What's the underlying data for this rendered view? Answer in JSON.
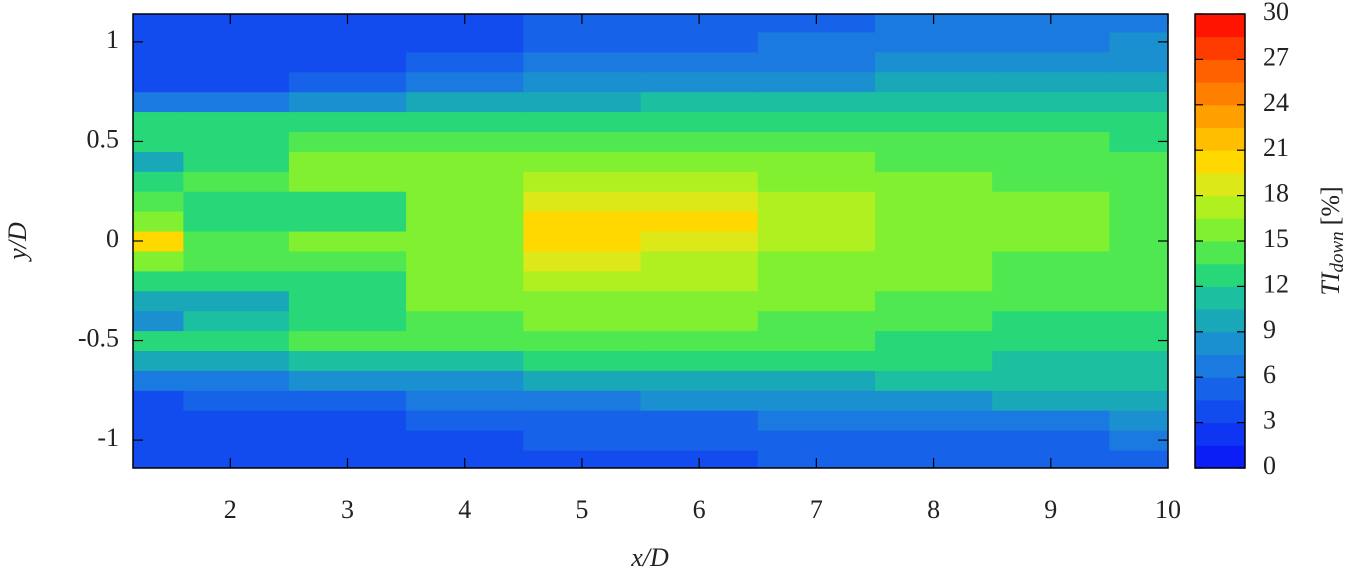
{
  "chart_data": {
    "type": "contour",
    "x_label": "x/D",
    "y_label": "y/D",
    "colorbar_label": {
      "main": "TI",
      "sub": "down",
      "unit": "[%]"
    },
    "xlim": [
      1.17,
      10
    ],
    "ylim": [
      -1.14,
      1.14
    ],
    "xticks": [
      2,
      3,
      4,
      5,
      6,
      7,
      8,
      9,
      10
    ],
    "yticks": [
      -1,
      -0.5,
      0,
      0.5,
      1
    ],
    "zlim": [
      0,
      30
    ],
    "zticks": [
      0,
      3,
      6,
      9,
      12,
      15,
      18,
      21,
      24,
      27,
      30
    ],
    "level_step": 1.5,
    "colors": [
      "#0a1ef5",
      "#0e35f2",
      "#124cee",
      "#1663ea",
      "#1a7ae0",
      "#1a90d0",
      "#18a8b8",
      "#1cc0a0",
      "#28d878",
      "#50e850",
      "#80f030",
      "#b0f020",
      "#dce818",
      "#ffd800",
      "#ffbe00",
      "#ffa000",
      "#ff8000",
      "#ff6000",
      "#ff3c00",
      "#ff1400"
    ],
    "x": [
      1.2,
      2,
      3,
      4,
      5,
      6,
      7,
      8,
      9,
      10
    ],
    "y": [
      -1.1,
      -1.0,
      -0.9,
      -0.8,
      -0.7,
      -0.6,
      -0.5,
      -0.4,
      -0.3,
      -0.2,
      -0.1,
      0,
      0.1,
      0.2,
      0.3,
      0.4,
      0.5,
      0.6,
      0.7,
      0.8,
      0.9,
      1.0,
      1.1
    ],
    "z": [
      [
        3,
        3,
        3.5,
        3.5,
        4,
        4,
        4.5,
        4.5,
        4.5,
        5
      ],
      [
        3,
        3,
        3.5,
        4,
        4.5,
        4.5,
        5,
        5.5,
        5.5,
        6.5
      ],
      [
        3,
        3.5,
        4,
        4.5,
        5,
        5.5,
        6,
        6.5,
        7,
        8
      ],
      [
        3.5,
        4.5,
        5,
        6,
        7,
        7.5,
        8,
        8.5,
        9,
        9.5
      ],
      [
        6,
        7,
        8,
        8.5,
        9.5,
        10,
        10,
        10.5,
        10.5,
        10.5
      ],
      [
        9,
        10,
        11,
        11,
        12,
        12,
        12,
        12,
        11.5,
        11.5
      ],
      [
        12,
        13,
        14,
        13.5,
        14,
        14,
        13.5,
        13,
        12.5,
        12.5
      ],
      [
        8,
        11,
        13,
        14.5,
        15,
        15,
        14.5,
        13.5,
        13,
        13
      ],
      [
        9,
        10,
        12,
        15,
        16,
        15.5,
        15,
        14.5,
        14,
        13.5
      ],
      [
        12,
        12,
        13,
        15.5,
        17,
        16.5,
        15.5,
        15,
        14.5,
        14
      ],
      [
        16,
        14,
        14,
        16,
        18,
        17.5,
        16,
        15,
        14.5,
        14
      ],
      [
        20,
        14,
        15,
        16,
        19.5,
        18.5,
        16.5,
        15.5,
        15,
        14
      ],
      [
        16,
        12,
        13,
        16,
        19.5,
        19.5,
        17,
        15.5,
        15,
        14.5
      ],
      [
        14,
        13,
        13,
        16,
        18,
        18.5,
        17,
        15.5,
        15,
        14.5
      ],
      [
        12,
        14.5,
        15,
        15.5,
        16.5,
        16.5,
        16,
        15,
        14.5,
        14
      ],
      [
        9,
        13,
        15,
        15,
        15,
        15,
        15,
        14.5,
        14,
        13.5
      ],
      [
        13,
        13,
        14,
        14,
        14,
        14,
        14,
        13.5,
        13.5,
        13
      ],
      [
        12,
        12,
        12,
        12,
        12.5,
        12.5,
        12.5,
        12.5,
        12.5,
        12.5
      ],
      [
        6,
        7,
        8,
        9,
        10,
        10.5,
        10.5,
        11,
        11,
        11
      ],
      [
        3.5,
        4,
        5,
        6.5,
        7.5,
        8,
        8.5,
        9,
        9.5,
        10
      ],
      [
        3,
        3.5,
        4,
        5,
        6,
        6.5,
        7,
        7.5,
        8,
        8.5
      ],
      [
        3,
        3,
        3.5,
        4,
        5,
        5.5,
        6,
        6.5,
        7,
        7.5
      ],
      [
        3,
        3,
        3.5,
        4,
        4.5,
        5,
        5.5,
        6,
        6,
        6.5
      ]
    ]
  }
}
